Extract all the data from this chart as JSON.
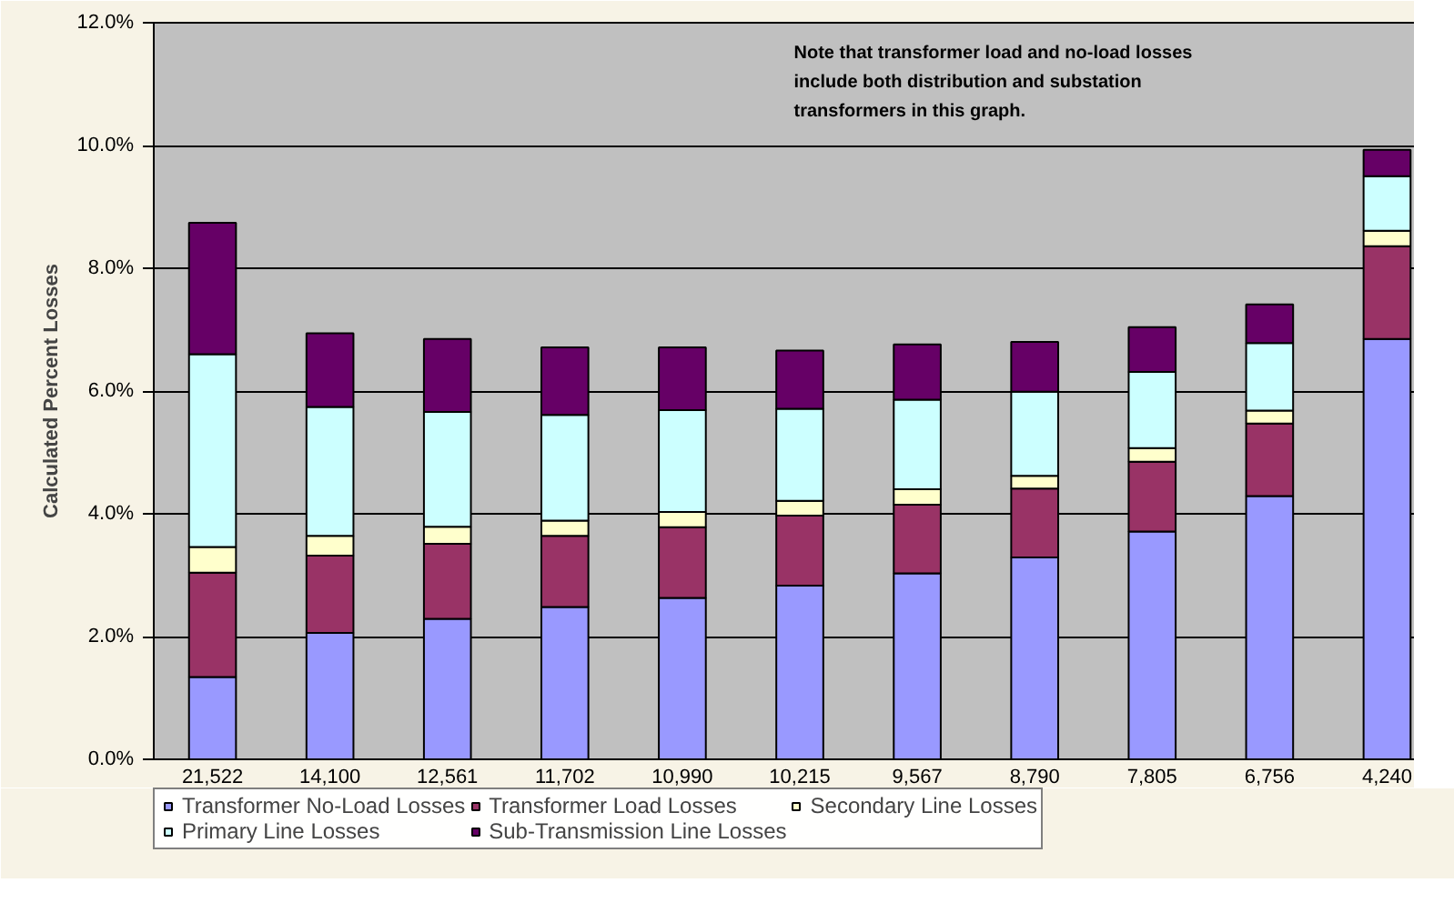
{
  "chart_data": {
    "type": "bar",
    "stacked": true,
    "ylabel": "Calculated Percent Losses",
    "categories": [
      "21,522",
      "14,100",
      "12,561",
      "11,702",
      "10,990",
      "10,215",
      "9,567",
      "8,790",
      "7,805",
      "6,756",
      "4,240"
    ],
    "series": [
      {
        "name": "Transformer No-Load Losses",
        "color": "#9999ff",
        "values": [
          1.34,
          2.06,
          2.29,
          2.48,
          2.63,
          2.83,
          3.03,
          3.29,
          3.71,
          4.29,
          6.85
        ]
      },
      {
        "name": "Transformer Load Losses",
        "color": "#993366",
        "values": [
          1.7,
          1.26,
          1.22,
          1.16,
          1.15,
          1.14,
          1.12,
          1.12,
          1.14,
          1.18,
          1.51
        ]
      },
      {
        "name": "Secondary Line Losses",
        "color": "#ffffcc",
        "values": [
          0.42,
          0.32,
          0.28,
          0.25,
          0.25,
          0.24,
          0.25,
          0.21,
          0.22,
          0.21,
          0.25
        ]
      },
      {
        "name": "Primary Line Losses",
        "color": "#ccffff",
        "values": [
          3.14,
          2.1,
          1.87,
          1.72,
          1.66,
          1.5,
          1.46,
          1.37,
          1.24,
          1.1,
          0.89
        ]
      },
      {
        "name": "Sub-Transmission Line Losses",
        "color": "#660066",
        "values": [
          2.14,
          1.2,
          1.19,
          1.1,
          1.02,
          0.95,
          0.9,
          0.81,
          0.73,
          0.63,
          0.43
        ]
      }
    ],
    "ylim": [
      0,
      12
    ],
    "yticks": [
      {
        "value": 0,
        "label": "0.0%"
      },
      {
        "value": 2,
        "label": "2.0%"
      },
      {
        "value": 4,
        "label": "4.0%"
      },
      {
        "value": 6,
        "label": "6.0%"
      },
      {
        "value": 8,
        "label": "8.0%"
      },
      {
        "value": 10,
        "label": "10.0%"
      },
      {
        "value": 12,
        "label": "12.0%"
      }
    ],
    "grid": "y",
    "legend": "bottom",
    "annotations": [
      "Note that transformer load and no-load losses include both distribution and substation transformers in this graph."
    ]
  }
}
